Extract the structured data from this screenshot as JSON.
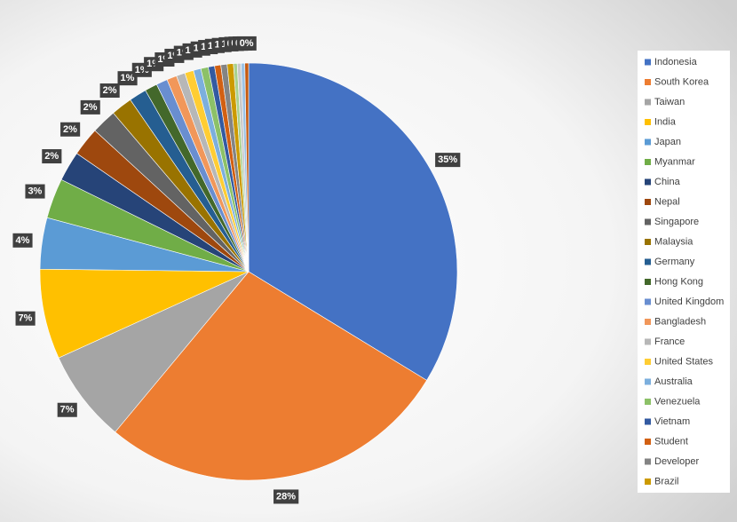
{
  "chart_data": {
    "type": "pie",
    "categories": [
      "Indonesia",
      "South Korea",
      "Taiwan",
      "India",
      "Japan",
      "Myanmar",
      "China",
      "Nepal",
      "Singapore",
      "Malaysia",
      "Germany",
      "Hong Kong",
      "United Kingdom",
      "Bangladesh",
      "France",
      "United States",
      "Australia",
      "Venezuela",
      "Vietnam",
      "Student",
      "Developer",
      "Brazil",
      null,
      null,
      null,
      null
    ],
    "values": [
      34.8,
      28.2,
      7.4,
      7.2,
      4.1,
      3.2,
      2.4,
      2.3,
      2.0,
      1.7,
      1.4,
      1.0,
      0.9,
      0.8,
      0.7,
      0.7,
      0.6,
      0.6,
      0.5,
      0.5,
      0.5,
      0.5,
      0.3,
      0.3,
      0.3,
      0.3
    ],
    "value_labels": [
      "35%",
      "28%",
      "7%",
      "7%",
      "4%",
      "3%",
      "2%",
      "2%",
      "2%",
      "2%",
      "1%",
      "1%",
      "1%",
      "1%",
      "1%",
      "1%",
      "1%",
      "1%",
      "1%",
      "1%",
      "1%",
      "1%",
      "0%",
      "0%",
      "0%",
      "0%"
    ],
    "colors": [
      "#4472c4",
      "#ed7d31",
      "#a5a5a5",
      "#ffc000",
      "#5b9bd5",
      "#70ad47",
      "#264478",
      "#9e480e",
      "#636363",
      "#997300",
      "#255e91",
      "#43682b",
      "#698ed0",
      "#f1975a",
      "#b7b7b7",
      "#ffcd33",
      "#7cafdd",
      "#8cc168",
      "#335aa1",
      "#d26012",
      "#848484",
      "#cc9a00",
      "#a9d18e",
      "#c9c9c9",
      "#9dc3e6",
      "#c55a11"
    ],
    "legend": "right"
  }
}
